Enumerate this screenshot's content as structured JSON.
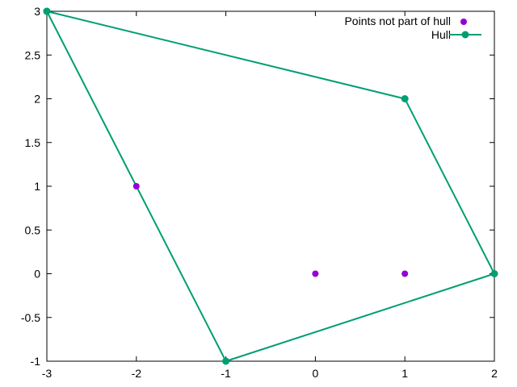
{
  "chart_data": {
    "type": "line",
    "xlim": [
      -3,
      2
    ],
    "ylim": [
      -1,
      3
    ],
    "x_ticks": [
      "-3",
      "-2",
      "-1",
      "0",
      "1",
      "2"
    ],
    "y_ticks": [
      "-1",
      "-0.5",
      "0",
      "0.5",
      "1",
      "1.5",
      "2",
      "2.5",
      "3"
    ],
    "grid": false,
    "legend_position": "top-right",
    "series": [
      {
        "name": "Points not part of hull",
        "kind": "scatter",
        "color": "#9400d3",
        "points": [
          {
            "x": -2,
            "y": 1
          },
          {
            "x": 0,
            "y": 0
          },
          {
            "x": 1,
            "y": 0
          }
        ]
      },
      {
        "name": "Hull",
        "kind": "line-with-markers",
        "color": "#009e73",
        "points": [
          {
            "x": -3,
            "y": 3
          },
          {
            "x": 1,
            "y": 2
          },
          {
            "x": 2,
            "y": 0
          },
          {
            "x": -1,
            "y": -1
          },
          {
            "x": -3,
            "y": 3
          }
        ]
      }
    ]
  }
}
